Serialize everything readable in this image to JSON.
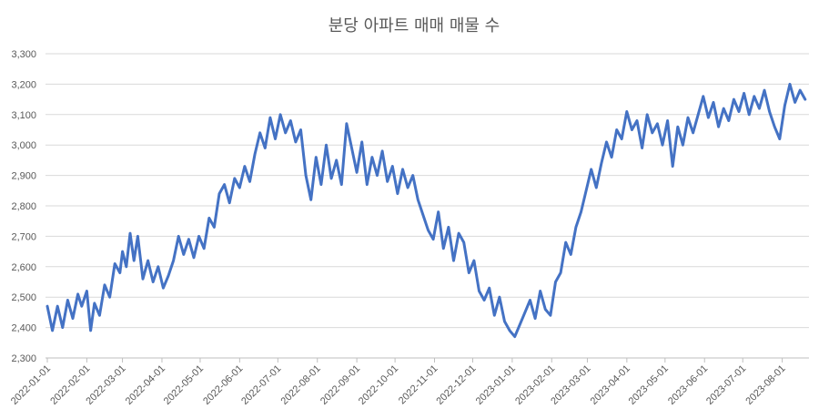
{
  "chart_data": {
    "type": "line",
    "title": "분당 아파트 매매 매물 수",
    "xlabel": "",
    "ylabel": "",
    "ylim": [
      2300,
      3300
    ],
    "y_ticks": [
      2300,
      2400,
      2500,
      2600,
      2700,
      2800,
      2900,
      3000,
      3100,
      3200,
      3300
    ],
    "y_tick_labels": [
      "2,300",
      "2,400",
      "2,500",
      "2,600",
      "2,700",
      "2,800",
      "2,900",
      "3,000",
      "3,100",
      "3,200",
      "3,300"
    ],
    "x_tick_labels": [
      "2022-01-01",
      "2022-02-01",
      "2022-03-01",
      "2022-04-01",
      "2022-05-01",
      "2022-06-01",
      "2022-07-01",
      "2022-08-01",
      "2022-09-01",
      "2022-10-01",
      "2022-11-01",
      "2022-12-01",
      "2023-01-01",
      "2023-02-01",
      "2023-03-01",
      "2023-04-01",
      "2023-05-01",
      "2023-06-01",
      "2023-07-01",
      "2023-08-01"
    ],
    "xlim": [
      "2022-01-01",
      "2023-08-22"
    ],
    "grid": true,
    "legend": "none",
    "series": [
      {
        "color": "#4472c4",
        "points": [
          [
            "2022-01-01",
            2470
          ],
          [
            "2022-01-05",
            2390
          ],
          [
            "2022-01-09",
            2470
          ],
          [
            "2022-01-13",
            2400
          ],
          [
            "2022-01-17",
            2490
          ],
          [
            "2022-01-21",
            2430
          ],
          [
            "2022-01-25",
            2510
          ],
          [
            "2022-01-28",
            2470
          ],
          [
            "2022-02-01",
            2520
          ],
          [
            "2022-02-04",
            2390
          ],
          [
            "2022-02-07",
            2480
          ],
          [
            "2022-02-11",
            2440
          ],
          [
            "2022-02-15",
            2540
          ],
          [
            "2022-02-19",
            2500
          ],
          [
            "2022-02-23",
            2610
          ],
          [
            "2022-02-27",
            2580
          ],
          [
            "2022-03-01",
            2650
          ],
          [
            "2022-03-04",
            2600
          ],
          [
            "2022-03-07",
            2710
          ],
          [
            "2022-03-10",
            2620
          ],
          [
            "2022-03-13",
            2700
          ],
          [
            "2022-03-17",
            2560
          ],
          [
            "2022-03-21",
            2620
          ],
          [
            "2022-03-25",
            2550
          ],
          [
            "2022-03-29",
            2600
          ],
          [
            "2022-04-02",
            2530
          ],
          [
            "2022-04-06",
            2570
          ],
          [
            "2022-04-10",
            2620
          ],
          [
            "2022-04-14",
            2700
          ],
          [
            "2022-04-18",
            2640
          ],
          [
            "2022-04-22",
            2690
          ],
          [
            "2022-04-26",
            2630
          ],
          [
            "2022-04-30",
            2700
          ],
          [
            "2022-05-04",
            2660
          ],
          [
            "2022-05-08",
            2760
          ],
          [
            "2022-05-12",
            2730
          ],
          [
            "2022-05-16",
            2840
          ],
          [
            "2022-05-20",
            2870
          ],
          [
            "2022-05-24",
            2810
          ],
          [
            "2022-05-28",
            2890
          ],
          [
            "2022-06-01",
            2860
          ],
          [
            "2022-06-05",
            2930
          ],
          [
            "2022-06-09",
            2880
          ],
          [
            "2022-06-13",
            2970
          ],
          [
            "2022-06-17",
            3040
          ],
          [
            "2022-06-21",
            2990
          ],
          [
            "2022-06-25",
            3090
          ],
          [
            "2022-06-29",
            3020
          ],
          [
            "2022-07-03",
            3100
          ],
          [
            "2022-07-07",
            3040
          ],
          [
            "2022-07-11",
            3080
          ],
          [
            "2022-07-15",
            3010
          ],
          [
            "2022-07-19",
            3050
          ],
          [
            "2022-07-23",
            2900
          ],
          [
            "2022-07-27",
            2820
          ],
          [
            "2022-07-31",
            2960
          ],
          [
            "2022-08-04",
            2870
          ],
          [
            "2022-08-08",
            3000
          ],
          [
            "2022-08-12",
            2890
          ],
          [
            "2022-08-16",
            2950
          ],
          [
            "2022-08-20",
            2870
          ],
          [
            "2022-08-24",
            3070
          ],
          [
            "2022-08-28",
            2990
          ],
          [
            "2022-09-01",
            2910
          ],
          [
            "2022-09-05",
            3010
          ],
          [
            "2022-09-09",
            2870
          ],
          [
            "2022-09-13",
            2960
          ],
          [
            "2022-09-17",
            2900
          ],
          [
            "2022-09-21",
            2980
          ],
          [
            "2022-09-25",
            2880
          ],
          [
            "2022-09-29",
            2930
          ],
          [
            "2022-10-03",
            2840
          ],
          [
            "2022-10-07",
            2920
          ],
          [
            "2022-10-11",
            2860
          ],
          [
            "2022-10-15",
            2900
          ],
          [
            "2022-10-19",
            2820
          ],
          [
            "2022-10-23",
            2770
          ],
          [
            "2022-10-27",
            2720
          ],
          [
            "2022-10-31",
            2690
          ],
          [
            "2022-11-04",
            2780
          ],
          [
            "2022-11-08",
            2660
          ],
          [
            "2022-11-12",
            2730
          ],
          [
            "2022-11-16",
            2620
          ],
          [
            "2022-11-20",
            2710
          ],
          [
            "2022-11-24",
            2680
          ],
          [
            "2022-11-28",
            2580
          ],
          [
            "2022-12-02",
            2620
          ],
          [
            "2022-12-06",
            2520
          ],
          [
            "2022-12-10",
            2490
          ],
          [
            "2022-12-14",
            2530
          ],
          [
            "2022-12-18",
            2440
          ],
          [
            "2022-12-22",
            2500
          ],
          [
            "2022-12-26",
            2420
          ],
          [
            "2022-12-30",
            2390
          ],
          [
            "2023-01-03",
            2370
          ],
          [
            "2023-01-07",
            2410
          ],
          [
            "2023-01-11",
            2450
          ],
          [
            "2023-01-15",
            2490
          ],
          [
            "2023-01-19",
            2430
          ],
          [
            "2023-01-23",
            2520
          ],
          [
            "2023-01-27",
            2460
          ],
          [
            "2023-01-31",
            2440
          ],
          [
            "2023-02-04",
            2550
          ],
          [
            "2023-02-08",
            2580
          ],
          [
            "2023-02-12",
            2680
          ],
          [
            "2023-02-16",
            2640
          ],
          [
            "2023-02-20",
            2730
          ],
          [
            "2023-02-24",
            2780
          ],
          [
            "2023-02-28",
            2850
          ],
          [
            "2023-03-04",
            2920
          ],
          [
            "2023-03-08",
            2860
          ],
          [
            "2023-03-12",
            2940
          ],
          [
            "2023-03-16",
            3010
          ],
          [
            "2023-03-20",
            2960
          ],
          [
            "2023-03-24",
            3050
          ],
          [
            "2023-03-28",
            3020
          ],
          [
            "2023-04-01",
            3110
          ],
          [
            "2023-04-05",
            3050
          ],
          [
            "2023-04-09",
            3080
          ],
          [
            "2023-04-13",
            2990
          ],
          [
            "2023-04-17",
            3100
          ],
          [
            "2023-04-21",
            3040
          ],
          [
            "2023-04-25",
            3070
          ],
          [
            "2023-04-29",
            3000
          ],
          [
            "2023-05-03",
            3080
          ],
          [
            "2023-05-07",
            2930
          ],
          [
            "2023-05-11",
            3060
          ],
          [
            "2023-05-15",
            3000
          ],
          [
            "2023-05-19",
            3090
          ],
          [
            "2023-05-23",
            3040
          ],
          [
            "2023-05-27",
            3100
          ],
          [
            "2023-05-31",
            3160
          ],
          [
            "2023-06-04",
            3090
          ],
          [
            "2023-06-08",
            3140
          ],
          [
            "2023-06-12",
            3060
          ],
          [
            "2023-06-16",
            3120
          ],
          [
            "2023-06-20",
            3080
          ],
          [
            "2023-06-24",
            3150
          ],
          [
            "2023-06-28",
            3110
          ],
          [
            "2023-07-02",
            3170
          ],
          [
            "2023-07-06",
            3100
          ],
          [
            "2023-07-10",
            3160
          ],
          [
            "2023-07-14",
            3120
          ],
          [
            "2023-07-18",
            3180
          ],
          [
            "2023-07-22",
            3110
          ],
          [
            "2023-07-26",
            3060
          ],
          [
            "2023-07-30",
            3020
          ],
          [
            "2023-08-03",
            3130
          ],
          [
            "2023-08-07",
            3200
          ],
          [
            "2023-08-11",
            3140
          ],
          [
            "2023-08-15",
            3180
          ],
          [
            "2023-08-19",
            3150
          ]
        ]
      }
    ]
  }
}
